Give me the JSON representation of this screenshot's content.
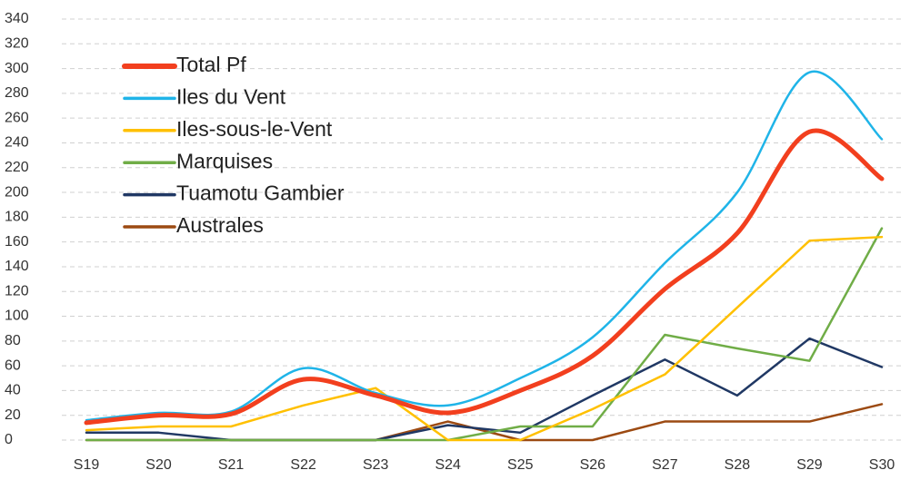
{
  "chart_data": {
    "type": "line",
    "categories": [
      "S19",
      "S20",
      "S21",
      "S22",
      "S23",
      "S24",
      "S25",
      "S26",
      "S27",
      "S28",
      "S29",
      "S30"
    ],
    "ylim": [
      0,
      340
    ],
    "yticks": [
      0,
      20,
      40,
      60,
      80,
      100,
      120,
      140,
      160,
      180,
      200,
      220,
      240,
      260,
      280,
      300,
      320,
      340
    ],
    "grid": true,
    "legend": "upper left",
    "series": [
      {
        "name": "Total Pf",
        "color": "#f23f1e",
        "width": 5,
        "smooth": true,
        "values": [
          14,
          20,
          21,
          49,
          36,
          22,
          40,
          68,
          122,
          167,
          249,
          211
        ]
      },
      {
        "name": "Iles du Vent",
        "color": "#1fb4e8",
        "width": 2.5,
        "smooth": true,
        "values": [
          16,
          22,
          23,
          58,
          38,
          28,
          50,
          83,
          143,
          200,
          297,
          243
        ]
      },
      {
        "name": "Iles-sous-le-Vent",
        "color": "#ffc000",
        "width": 2.5,
        "smooth": false,
        "values": [
          8,
          11,
          11,
          28,
          42,
          0,
          0,
          25,
          53,
          107,
          161,
          164
        ]
      },
      {
        "name": "Marquises",
        "color": "#70ad47",
        "width": 2.5,
        "smooth": false,
        "values": [
          0,
          0,
          0,
          0,
          0,
          0,
          11,
          11,
          85,
          74,
          64,
          171
        ]
      },
      {
        "name": "Tuamotu Gambier",
        "color": "#203864",
        "width": 2.5,
        "smooth": false,
        "values": [
          6,
          6,
          0,
          0,
          0,
          12,
          6,
          36,
          65,
          36,
          82,
          59
        ]
      },
      {
        "name": "Australes",
        "color": "#9c4a12",
        "width": 2.5,
        "smooth": false,
        "values": [
          0,
          0,
          0,
          0,
          0,
          15,
          0,
          0,
          15,
          15,
          15,
          29
        ]
      }
    ]
  }
}
